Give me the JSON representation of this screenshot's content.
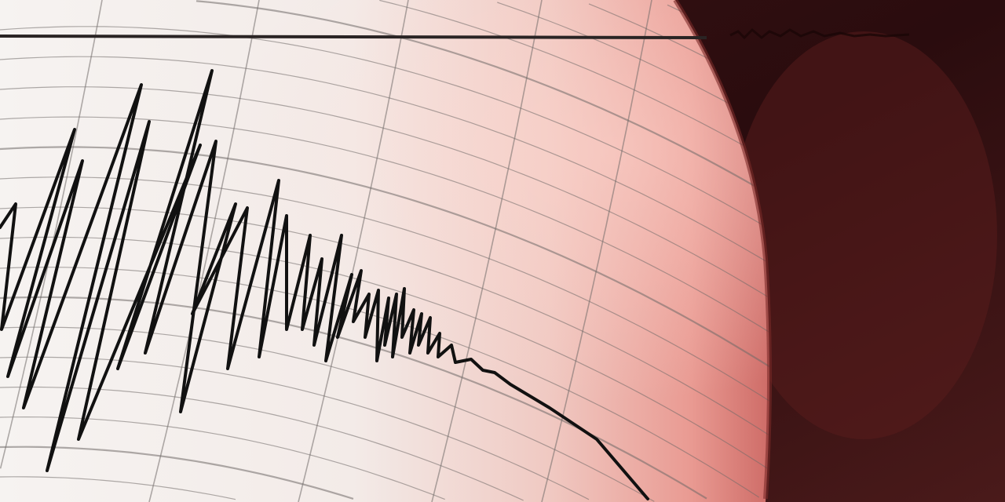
{
  "scene": {
    "subject": "seismograph",
    "colors": {
      "paper": "#f4efec",
      "paper_edge": "#e88a86",
      "background_dark": "#2a0d0e",
      "trace": "#111111",
      "grid": "#6f6a68"
    }
  }
}
